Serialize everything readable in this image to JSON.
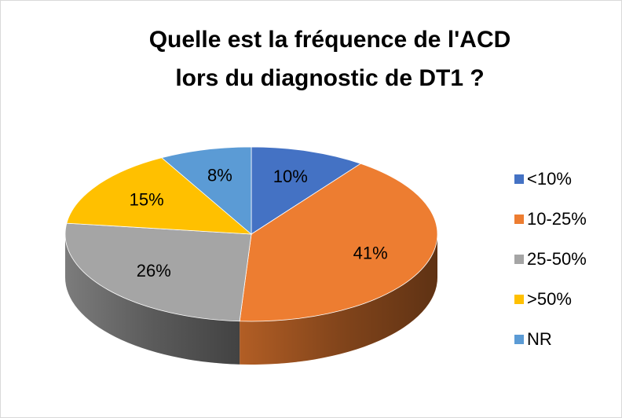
{
  "chart_data": {
    "type": "pie",
    "title": [
      "Quelle est la fréquence de l'ACD",
      "lors du diagnostic de DT1 ?"
    ],
    "categories": [
      "<10%",
      "10-25%",
      "25-50%",
      ">50%",
      "NR"
    ],
    "values": [
      10,
      41,
      26,
      15,
      8
    ],
    "value_labels": [
      "10%",
      "41%",
      "26%",
      "15%",
      "8%"
    ],
    "colors": [
      "#4472c4",
      "#ed7d31",
      "#a5a5a5",
      "#ffc000",
      "#5b9bd5"
    ],
    "legend": "right"
  }
}
